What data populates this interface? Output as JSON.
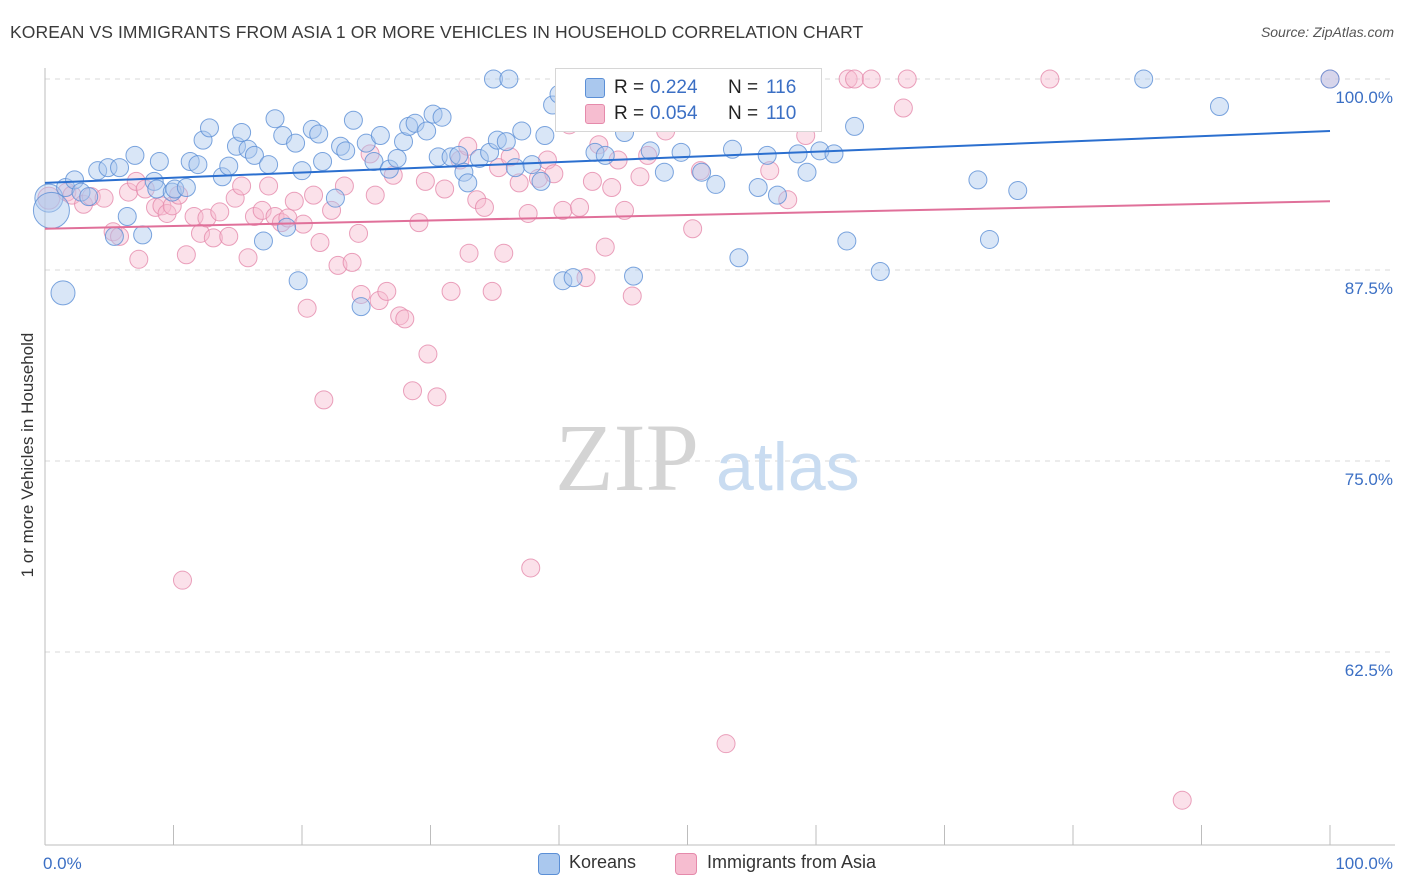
{
  "header": {
    "title": "KOREAN VS IMMIGRANTS FROM ASIA 1 OR MORE VEHICLES IN HOUSEHOLD CORRELATION CHART",
    "source": "Source: ZipAtlas.com"
  },
  "watermark": {
    "zip": "ZIP",
    "atlas": "atlas"
  },
  "legend": {
    "r_label": "R =",
    "n_label": "N =",
    "rows": [
      {
        "r": "0.224",
        "n": "116"
      },
      {
        "r": "0.054",
        "n": "110"
      }
    ]
  },
  "colors": {
    "koreans_fill": "#aac8ee",
    "koreans_stroke": "#5b8fd6",
    "koreans_line": "#2b6fcf",
    "asia_fill": "#f6bdd0",
    "asia_stroke": "#e58aab",
    "asia_line": "#e0709a",
    "tick_text": "#3b6fc4",
    "grid": "#d9d9d9"
  },
  "chart_data": {
    "type": "scatter",
    "title": "KOREAN VS IMMIGRANTS FROM ASIA 1 OR MORE VEHICLES IN HOUSEHOLD CORRELATION CHART",
    "xlabel": "",
    "ylabel": "1 or more Vehicles in Household",
    "xlim": [
      0,
      100
    ],
    "ylim": [
      50,
      102
    ],
    "x_tick_labels": [
      "0.0%",
      "100.0%"
    ],
    "y_ticks": [
      62.5,
      75.0,
      87.5,
      100.0
    ],
    "y_tick_labels": [
      "62.5%",
      "75.0%",
      "87.5%",
      "100.0%"
    ],
    "grid": "horizontal dashed",
    "legend_position": "bottom-center",
    "series": [
      {
        "name": "Koreans",
        "r": 0.224,
        "n": 116,
        "trend": {
          "x0": 0,
          "y0": 93.2,
          "x1": 100,
          "y1": 96.6
        },
        "points": [
          [
            0.3,
            92.2,
            14
          ],
          [
            0.5,
            91.4,
            18
          ],
          [
            1.4,
            86.0,
            12
          ],
          [
            1.6,
            92.9,
            9
          ],
          [
            2.3,
            93.4,
            9
          ],
          [
            2.8,
            92.6,
            9
          ],
          [
            3.4,
            92.3,
            9
          ],
          [
            4.1,
            94.0,
            9
          ],
          [
            4.9,
            94.2,
            9
          ],
          [
            5.4,
            89.7,
            9
          ],
          [
            5.8,
            94.2,
            9
          ],
          [
            6.4,
            91.0,
            9
          ],
          [
            7.0,
            95.0,
            9
          ],
          [
            7.6,
            89.8,
            9
          ],
          [
            8.5,
            93.3,
            9
          ],
          [
            8.7,
            92.8,
            9
          ],
          [
            8.9,
            94.6,
            9
          ],
          [
            9.9,
            92.6,
            9
          ],
          [
            10.1,
            92.8,
            9
          ],
          [
            11.0,
            92.9,
            9
          ],
          [
            11.3,
            94.6,
            9
          ],
          [
            11.9,
            94.4,
            9
          ],
          [
            12.3,
            96.0,
            9
          ],
          [
            12.8,
            96.8,
            9
          ],
          [
            13.8,
            93.6,
            9
          ],
          [
            14.3,
            94.3,
            9
          ],
          [
            14.9,
            95.6,
            9
          ],
          [
            15.3,
            96.5,
            9
          ],
          [
            15.8,
            95.4,
            9
          ],
          [
            16.3,
            95.0,
            9
          ],
          [
            17.0,
            89.4,
            9
          ],
          [
            17.4,
            94.4,
            9
          ],
          [
            17.9,
            97.4,
            9
          ],
          [
            18.5,
            96.3,
            9
          ],
          [
            18.8,
            90.3,
            9
          ],
          [
            19.5,
            95.8,
            9
          ],
          [
            19.7,
            86.8,
            9
          ],
          [
            20.0,
            94.0,
            9
          ],
          [
            20.8,
            96.7,
            9
          ],
          [
            21.3,
            96.4,
            9
          ],
          [
            21.6,
            94.6,
            9
          ],
          [
            22.6,
            92.2,
            9
          ],
          [
            23.0,
            95.6,
            9
          ],
          [
            23.4,
            95.3,
            9
          ],
          [
            24.0,
            97.3,
            9
          ],
          [
            24.6,
            85.1,
            9
          ],
          [
            25.0,
            95.8,
            9
          ],
          [
            25.6,
            94.6,
            9
          ],
          [
            26.1,
            96.3,
            9
          ],
          [
            26.8,
            94.1,
            9
          ],
          [
            27.4,
            94.8,
            9
          ],
          [
            27.9,
            95.9,
            9
          ],
          [
            28.3,
            96.9,
            9
          ],
          [
            28.8,
            97.1,
            9
          ],
          [
            29.7,
            96.6,
            9
          ],
          [
            30.2,
            97.7,
            9
          ],
          [
            30.6,
            94.9,
            9
          ],
          [
            30.9,
            97.5,
            9
          ],
          [
            31.6,
            94.9,
            9
          ],
          [
            32.2,
            95.0,
            9
          ],
          [
            32.6,
            93.9,
            9
          ],
          [
            32.9,
            93.2,
            9
          ],
          [
            33.8,
            94.8,
            9
          ],
          [
            34.6,
            95.2,
            9
          ],
          [
            34.9,
            100.0,
            9
          ],
          [
            35.2,
            96.0,
            9
          ],
          [
            35.9,
            95.9,
            9
          ],
          [
            36.1,
            100.0,
            9
          ],
          [
            36.6,
            94.2,
            9
          ],
          [
            37.1,
            96.6,
            9
          ],
          [
            37.9,
            94.4,
            9
          ],
          [
            38.6,
            93.3,
            9
          ],
          [
            38.9,
            96.3,
            9
          ],
          [
            39.5,
            98.3,
            9
          ],
          [
            40.0,
            99.0,
            9
          ],
          [
            40.3,
            86.8,
            9
          ],
          [
            41.1,
            87.0,
            9
          ],
          [
            41.6,
            100.0,
            9
          ],
          [
            42.8,
            95.2,
            9
          ],
          [
            43.6,
            95.0,
            9
          ],
          [
            44.3,
            98.5,
            9
          ],
          [
            45.1,
            96.5,
            9
          ],
          [
            45.8,
            87.1,
            9
          ],
          [
            46.0,
            98.3,
            9
          ],
          [
            47.1,
            95.3,
            9
          ],
          [
            48.2,
            93.9,
            9
          ],
          [
            49.5,
            95.2,
            9
          ],
          [
            51.1,
            93.9,
            9
          ],
          [
            52.2,
            93.1,
            9
          ],
          [
            53.5,
            95.4,
            9
          ],
          [
            54.0,
            88.3,
            9
          ],
          [
            55.5,
            92.9,
            9
          ],
          [
            56.2,
            95.0,
            9
          ],
          [
            57.0,
            92.4,
            9
          ],
          [
            58.6,
            95.1,
            9
          ],
          [
            59.3,
            93.9,
            9
          ],
          [
            60.3,
            95.3,
            9
          ],
          [
            61.4,
            95.1,
            9
          ],
          [
            62.4,
            89.4,
            9
          ],
          [
            63.0,
            96.9,
            9
          ],
          [
            65.0,
            87.4,
            9
          ],
          [
            72.6,
            93.4,
            9
          ],
          [
            73.5,
            89.5,
            9
          ],
          [
            75.7,
            92.7,
            9
          ],
          [
            85.5,
            100.0,
            9
          ],
          [
            91.4,
            98.2,
            9
          ],
          [
            100.0,
            100.0,
            9
          ]
        ]
      },
      {
        "name": "Immigrants from Asia",
        "r": 0.054,
        "n": 110,
        "trend": {
          "x0": 0,
          "y0": 90.2,
          "x1": 100,
          "y1": 92.0
        },
        "points": [
          [
            0.3,
            92.2,
            11
          ],
          [
            1.7,
            92.6,
            9
          ],
          [
            2.1,
            92.4,
            9
          ],
          [
            3.0,
            91.8,
            9
          ],
          [
            3.6,
            92.3,
            9
          ],
          [
            4.6,
            92.2,
            9
          ],
          [
            5.3,
            90.0,
            9
          ],
          [
            5.8,
            89.7,
            9
          ],
          [
            6.5,
            92.6,
            9
          ],
          [
            7.1,
            93.3,
            9
          ],
          [
            7.3,
            88.2,
            9
          ],
          [
            7.8,
            92.8,
            9
          ],
          [
            8.6,
            91.6,
            9
          ],
          [
            9.1,
            91.7,
            9
          ],
          [
            9.5,
            91.2,
            9
          ],
          [
            9.9,
            91.7,
            9
          ],
          [
            10.4,
            92.4,
            9
          ],
          [
            10.7,
            67.2,
            9
          ],
          [
            11.0,
            88.5,
            9
          ],
          [
            11.6,
            91.0,
            9
          ],
          [
            12.1,
            89.9,
            9
          ],
          [
            12.6,
            90.9,
            9
          ],
          [
            13.1,
            89.6,
            9
          ],
          [
            13.6,
            91.3,
            9
          ],
          [
            14.3,
            89.7,
            9
          ],
          [
            14.8,
            92.2,
            9
          ],
          [
            15.3,
            93.0,
            9
          ],
          [
            15.8,
            88.3,
            9
          ],
          [
            16.3,
            91.0,
            9
          ],
          [
            16.9,
            91.4,
            9
          ],
          [
            17.4,
            93.0,
            9
          ],
          [
            17.9,
            91.0,
            9
          ],
          [
            18.4,
            90.6,
            9
          ],
          [
            18.9,
            90.9,
            9
          ],
          [
            19.4,
            92.0,
            9
          ],
          [
            20.1,
            90.5,
            9
          ],
          [
            20.4,
            85.0,
            9
          ],
          [
            20.9,
            92.4,
            9
          ],
          [
            21.4,
            89.3,
            9
          ],
          [
            21.7,
            79.0,
            9
          ],
          [
            22.3,
            91.4,
            9
          ],
          [
            22.8,
            87.8,
            9
          ],
          [
            23.3,
            93.0,
            9
          ],
          [
            23.9,
            88.0,
            9
          ],
          [
            24.4,
            89.9,
            9
          ],
          [
            24.6,
            85.9,
            9
          ],
          [
            25.3,
            95.1,
            9
          ],
          [
            25.7,
            92.4,
            9
          ],
          [
            26.0,
            85.5,
            9
          ],
          [
            26.6,
            86.1,
            9
          ],
          [
            27.1,
            93.7,
            9
          ],
          [
            27.6,
            84.5,
            9
          ],
          [
            28.0,
            84.3,
            9
          ],
          [
            28.6,
            79.6,
            9
          ],
          [
            29.1,
            90.6,
            9
          ],
          [
            29.6,
            93.3,
            9
          ],
          [
            29.8,
            82.0,
            9
          ],
          [
            30.5,
            79.2,
            9
          ],
          [
            31.1,
            92.8,
            9
          ],
          [
            31.6,
            86.1,
            9
          ],
          [
            32.3,
            94.7,
            9
          ],
          [
            32.9,
            95.6,
            9
          ],
          [
            33.0,
            88.6,
            9
          ],
          [
            33.6,
            92.1,
            9
          ],
          [
            34.2,
            91.6,
            9
          ],
          [
            34.8,
            86.1,
            9
          ],
          [
            35.3,
            94.2,
            9
          ],
          [
            35.7,
            88.6,
            9
          ],
          [
            36.2,
            94.9,
            9
          ],
          [
            36.9,
            93.2,
            9
          ],
          [
            37.6,
            91.2,
            9
          ],
          [
            37.8,
            68.0,
            9
          ],
          [
            38.4,
            93.5,
            9
          ],
          [
            39.1,
            94.7,
            9
          ],
          [
            39.6,
            93.8,
            9
          ],
          [
            40.3,
            91.4,
            9
          ],
          [
            40.8,
            97.0,
            9
          ],
          [
            41.6,
            91.6,
            9
          ],
          [
            42.1,
            87.0,
            9
          ],
          [
            42.6,
            93.3,
            9
          ],
          [
            43.1,
            95.7,
            9
          ],
          [
            43.6,
            89.0,
            9
          ],
          [
            44.1,
            92.9,
            9
          ],
          [
            44.6,
            94.7,
            9
          ],
          [
            45.1,
            91.4,
            9
          ],
          [
            45.7,
            85.8,
            9
          ],
          [
            46.3,
            93.6,
            9
          ],
          [
            46.9,
            95.0,
            9
          ],
          [
            47.6,
            100.0,
            9
          ],
          [
            48.3,
            96.6,
            9
          ],
          [
            50.4,
            90.2,
            9
          ],
          [
            51.0,
            94.0,
            9
          ],
          [
            52.4,
            100.0,
            9
          ],
          [
            53.0,
            56.5,
            9
          ],
          [
            56.4,
            94.0,
            9
          ],
          [
            57.8,
            92.1,
            9
          ],
          [
            59.2,
            96.3,
            9
          ],
          [
            62.5,
            100.0,
            9
          ],
          [
            63.0,
            100.0,
            9
          ],
          [
            64.3,
            100.0,
            9
          ],
          [
            66.8,
            98.1,
            9
          ],
          [
            67.1,
            100.0,
            9
          ],
          [
            78.2,
            100.0,
            9
          ],
          [
            88.5,
            52.8,
            9
          ],
          [
            100.0,
            100.0,
            9
          ]
        ]
      }
    ]
  },
  "bottom_legend": {
    "items": [
      {
        "label": "Koreans"
      },
      {
        "label": "Immigrants from Asia"
      }
    ]
  }
}
